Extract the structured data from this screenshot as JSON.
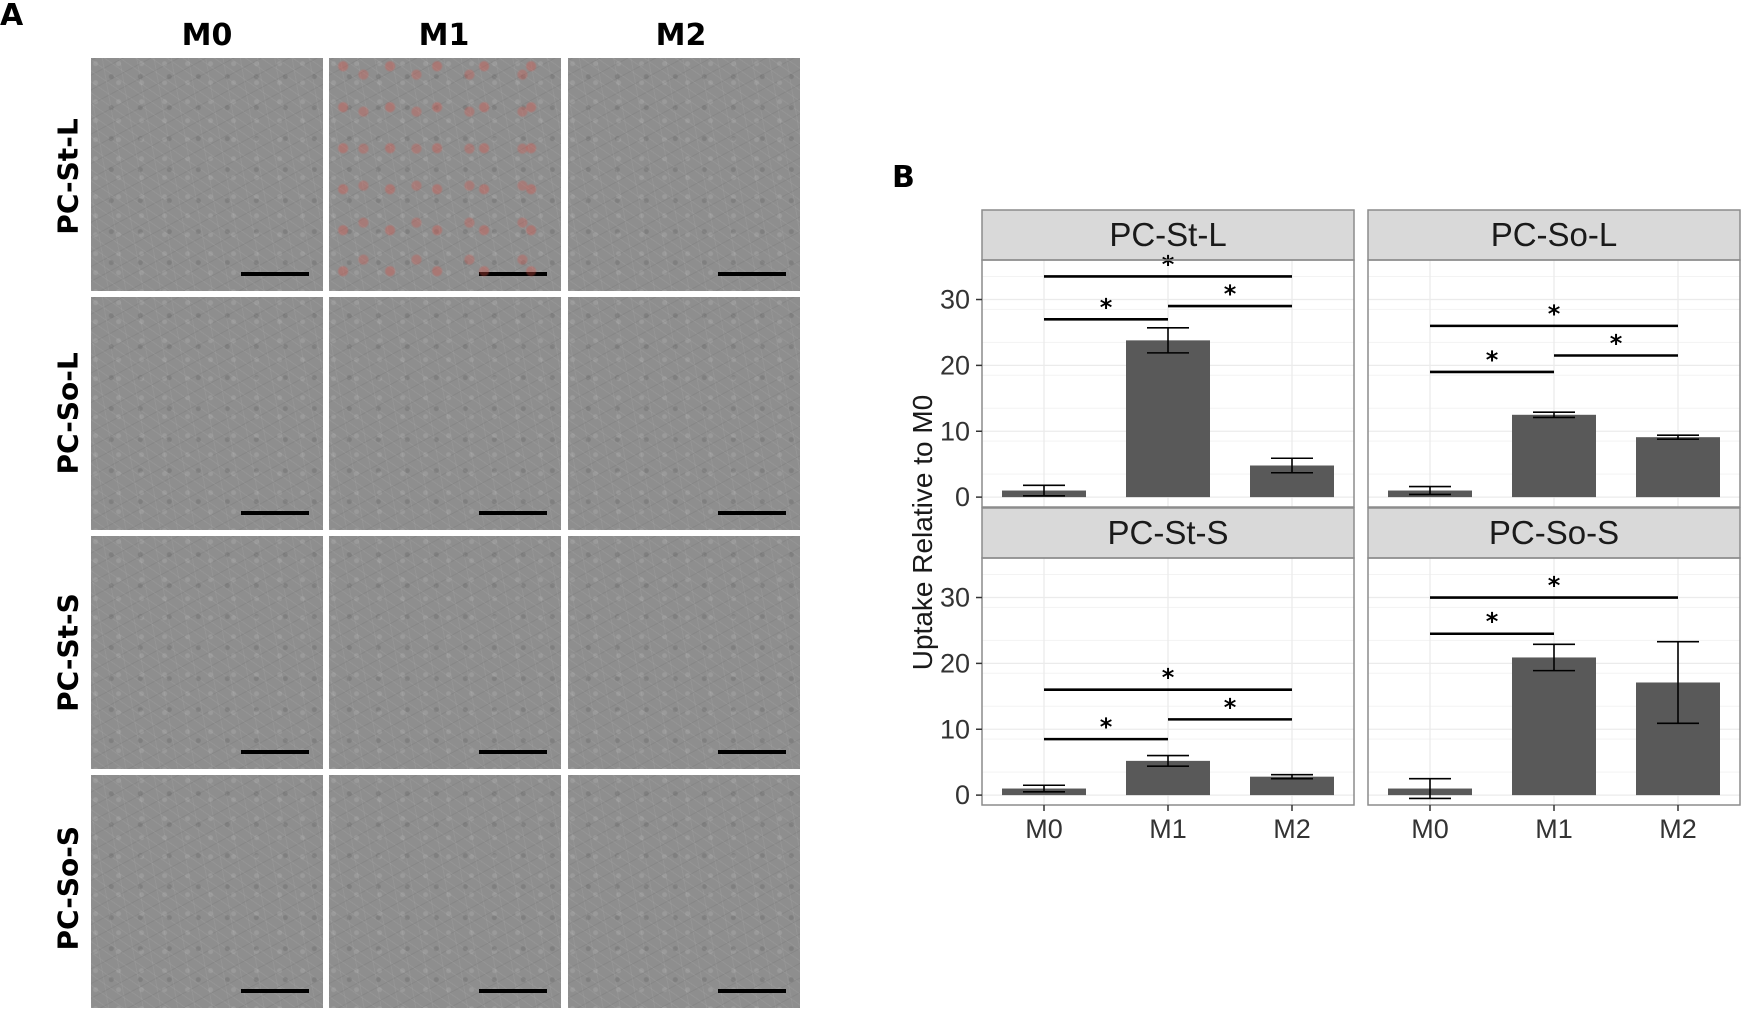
{
  "panel_a": {
    "letter": "A",
    "columns": [
      "M0",
      "M1",
      "M2"
    ],
    "rows": [
      "PC-St-L",
      "PC-So-L",
      "PC-St-S",
      "PC-So-S"
    ]
  },
  "panel_b": {
    "letter": "B"
  },
  "chart_data": {
    "type": "bar",
    "layout": "facet-grid-2x2",
    "ylabel": "Uptake Relative to M0",
    "ylim": [
      -1.5,
      36
    ],
    "yticks": [
      0,
      10,
      20,
      30
    ],
    "categories": [
      "M0",
      "M1",
      "M2"
    ],
    "grid": true,
    "colors": {
      "bar": "#595959",
      "strip": "#d9d9d9",
      "panel_bg": "#ffffff",
      "grid": "#ebebeb"
    },
    "facets": [
      {
        "title": "PC-St-L",
        "values": [
          1.0,
          23.8,
          4.8
        ],
        "errors": [
          0.8,
          1.9,
          1.1
        ],
        "significance": [
          {
            "from": "M0",
            "to": "M2",
            "y": 33.5,
            "label": "*"
          },
          {
            "from": "M0",
            "to": "M1",
            "y": 27.0,
            "label": "*"
          },
          {
            "from": "M1",
            "to": "M2",
            "y": 29.0,
            "label": "*"
          }
        ]
      },
      {
        "title": "PC-So-L",
        "values": [
          1.0,
          12.5,
          9.1
        ],
        "errors": [
          0.6,
          0.4,
          0.3
        ],
        "significance": [
          {
            "from": "M0",
            "to": "M2",
            "y": 26.0,
            "label": "*"
          },
          {
            "from": "M0",
            "to": "M1",
            "y": 19.0,
            "label": "*"
          },
          {
            "from": "M1",
            "to": "M2",
            "y": 21.5,
            "label": "*"
          }
        ]
      },
      {
        "title": "PC-St-S",
        "values": [
          1.0,
          5.2,
          2.8
        ],
        "errors": [
          0.5,
          0.8,
          0.3
        ],
        "significance": [
          {
            "from": "M0",
            "to": "M2",
            "y": 16.0,
            "label": "*"
          },
          {
            "from": "M0",
            "to": "M1",
            "y": 8.5,
            "label": "*"
          },
          {
            "from": "M1",
            "to": "M2",
            "y": 11.5,
            "label": "*"
          }
        ]
      },
      {
        "title": "PC-So-S",
        "values": [
          1.0,
          20.9,
          17.1
        ],
        "errors": [
          1.5,
          2.0,
          6.2
        ],
        "significance": [
          {
            "from": "M0",
            "to": "M2",
            "y": 30.0,
            "label": "*"
          },
          {
            "from": "M0",
            "to": "M1",
            "y": 24.5,
            "label": "*"
          }
        ]
      }
    ]
  }
}
